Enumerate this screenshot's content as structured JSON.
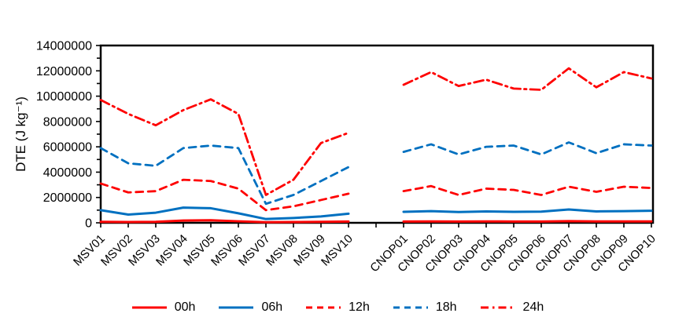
{
  "y_axis_title": "DTE (J kg⁻¹)",
  "chart_data": {
    "type": "line",
    "title": "",
    "xlabel": "",
    "ylabel": "DTE (J kg⁻¹)",
    "ylim": [
      0,
      14000000
    ],
    "ytick_step": 2000000,
    "yminor_step": 1000000,
    "grid": false,
    "legend_position": "bottom",
    "categories": [
      "MSV01",
      "MSV02",
      "MSV03",
      "MSV04",
      "MSV05",
      "MSV06",
      "MSV07",
      "MSV08",
      "MSV09",
      "MSV10",
      "",
      "CNOP01",
      "CNOP02",
      "CNOP03",
      "CNOP04",
      "CNOP05",
      "CNOP06",
      "CNOP07",
      "CNOP08",
      "CNOP09",
      "CNOP10"
    ],
    "series": [
      {
        "name": "00h",
        "color": "#fe0000",
        "style": "solid",
        "width": 3,
        "values": [
          80000,
          60000,
          80000,
          180000,
          200000,
          120000,
          50000,
          60000,
          80000,
          100000,
          null,
          100000,
          110000,
          100000,
          110000,
          100000,
          100000,
          130000,
          110000,
          110000,
          110000
        ]
      },
      {
        "name": "06h",
        "color": "#0070c0",
        "style": "solid",
        "width": 3,
        "values": [
          1000000,
          650000,
          800000,
          1200000,
          1150000,
          750000,
          300000,
          380000,
          500000,
          720000,
          null,
          870000,
          920000,
          850000,
          900000,
          870000,
          880000,
          1050000,
          900000,
          920000,
          950000
        ]
      },
      {
        "name": "12h",
        "color": "#fe0000",
        "style": "dashed",
        "width": 2.8,
        "values": [
          3100000,
          2400000,
          2500000,
          3400000,
          3300000,
          2700000,
          1000000,
          1300000,
          1800000,
          2300000,
          null,
          2500000,
          2900000,
          2200000,
          2700000,
          2600000,
          2200000,
          2850000,
          2450000,
          2850000,
          2750000
        ]
      },
      {
        "name": "18h",
        "color": "#0070c0",
        "style": "dashed",
        "width": 2.8,
        "values": [
          5900000,
          4700000,
          4500000,
          5900000,
          6100000,
          5900000,
          1500000,
          2200000,
          3300000,
          4400000,
          null,
          5600000,
          6200000,
          5400000,
          6000000,
          6100000,
          5400000,
          6350000,
          5500000,
          6200000,
          6100000
        ]
      },
      {
        "name": "24h",
        "color": "#fe0000",
        "style": "dashdot",
        "width": 2.8,
        "values": [
          9700000,
          8600000,
          7700000,
          8900000,
          9750000,
          8600000,
          2200000,
          3400000,
          6300000,
          7100000,
          null,
          10900000,
          11900000,
          10800000,
          11300000,
          10600000,
          10500000,
          12200000,
          10700000,
          11900000,
          11400000
        ]
      }
    ]
  }
}
